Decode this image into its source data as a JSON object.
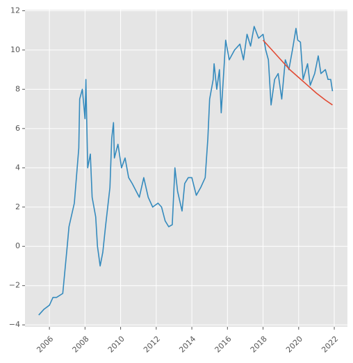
{
  "chart_data": {
    "type": "line",
    "xlim": [
      2004.63,
      2022.74
    ],
    "ylim": [
      -4.1,
      12.05
    ],
    "xticks": [
      2006,
      2008,
      2010,
      2012,
      2014,
      2016,
      2018,
      2020,
      2022
    ],
    "yticks": [
      {
        "value": -4,
        "label": "−4"
      },
      {
        "value": -2,
        "label": "−2"
      },
      0,
      2,
      4,
      6,
      8,
      10,
      12
    ],
    "grid": true,
    "series": [
      {
        "color": "#348abd",
        "x": [
          2005.4,
          2005.7,
          2006.0,
          2006.2,
          2006.4,
          2006.75,
          2007.0,
          2007.1,
          2007.4,
          2007.65,
          2007.7,
          2007.85,
          2008.0,
          2008.05,
          2008.15,
          2008.3,
          2008.4,
          2008.6,
          2008.7,
          2008.85,
          2009.0,
          2009.15,
          2009.4,
          2009.5,
          2009.6,
          2009.65,
          2009.85,
          2010.05,
          2010.25,
          2010.45,
          2010.65,
          2011.05,
          2011.3,
          2011.55,
          2011.8,
          2012.1,
          2012.3,
          2012.5,
          2012.7,
          2012.9,
          2013.05,
          2013.2,
          2013.45,
          2013.6,
          2013.8,
          2014.0,
          2014.25,
          2014.5,
          2014.75,
          2014.9,
          2015.0,
          2015.2,
          2015.25,
          2015.4,
          2015.55,
          2015.65,
          2015.8,
          2015.9,
          2016.1,
          2016.4,
          2016.7,
          2016.9,
          2017.1,
          2017.3,
          2017.5,
          2017.75,
          2018.0,
          2018.15,
          2018.3,
          2018.45,
          2018.65,
          2018.85,
          2019.05,
          2019.25,
          2019.45,
          2019.65,
          2019.85,
          2019.95,
          2020.1,
          2020.25,
          2020.5,
          2020.65,
          2020.9,
          2021.1,
          2021.25,
          2021.5,
          2021.65,
          2021.8,
          2021.9
        ],
        "values": [
          -3.5,
          -3.2,
          -3.0,
          -2.6,
          -2.6,
          -2.4,
          0.0,
          1.0,
          2.2,
          5.0,
          7.5,
          8.0,
          6.5,
          8.5,
          4.0,
          4.7,
          2.5,
          1.5,
          0.0,
          -1.0,
          -0.3,
          1.0,
          3.0,
          5.5,
          6.3,
          4.5,
          5.2,
          4.0,
          4.5,
          3.5,
          3.2,
          2.5,
          3.5,
          2.5,
          2.0,
          2.2,
          2.0,
          1.3,
          1.0,
          1.1,
          4.0,
          2.8,
          1.8,
          3.2,
          3.5,
          3.5,
          2.6,
          3.0,
          3.5,
          5.5,
          7.5,
          8.5,
          9.3,
          8.0,
          9.0,
          6.8,
          9.0,
          10.5,
          9.5,
          10.0,
          10.3,
          9.5,
          10.8,
          10.2,
          11.2,
          10.6,
          10.8,
          10.0,
          9.5,
          7.2,
          8.5,
          8.8,
          7.5,
          9.5,
          9.0,
          10.0,
          11.1,
          10.5,
          10.4,
          8.5,
          9.3,
          8.2,
          8.8,
          9.7,
          8.8,
          9.0,
          8.5,
          8.5,
          7.9
        ]
      },
      {
        "color": "#e24a33",
        "x": [
          2018.0,
          2018.5,
          2019.0,
          2019.5,
          2020.0,
          2020.5,
          2021.0,
          2021.5,
          2021.9
        ],
        "values": [
          10.5,
          10.0,
          9.5,
          9.0,
          8.6,
          8.2,
          7.8,
          7.45,
          7.2
        ]
      }
    ]
  }
}
